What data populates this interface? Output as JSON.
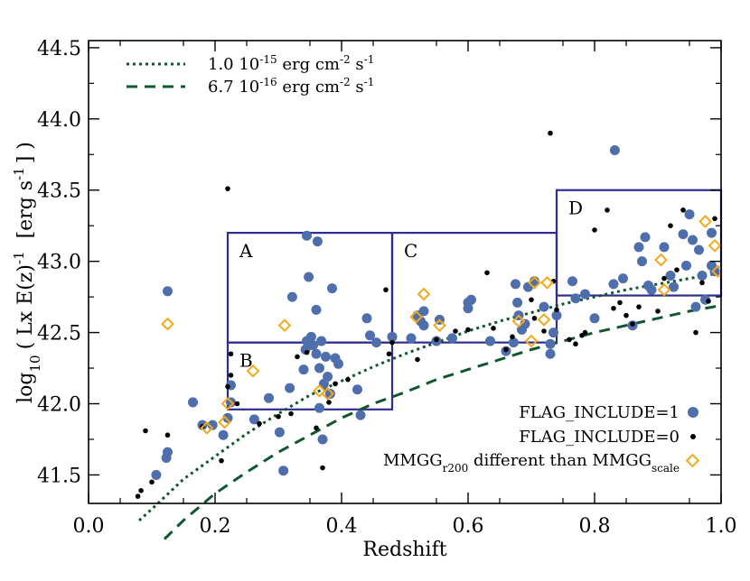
{
  "chart_data": {
    "type": "scatter",
    "xlabel": "Redshift",
    "ylabel_parts": {
      "prefix": "log",
      "sub": "10",
      "mid": "( Lx E(z)",
      "sup": "-1",
      "suffix": "[erg s",
      "unit_sup": "-1",
      "end": "] )"
    },
    "xlim": [
      0.0,
      1.0
    ],
    "ylim": [
      41.3,
      44.55
    ],
    "xticks": [
      0.0,
      0.2,
      0.4,
      0.6,
      0.8,
      1.0
    ],
    "xtick_labels": [
      "0.0",
      "0.2",
      "0.4",
      "0.6",
      "0.8",
      "1.0"
    ],
    "yticks": [
      41.5,
      42.0,
      42.5,
      43.0,
      43.5,
      44.0,
      44.5
    ],
    "ytick_labels": [
      "41.5",
      "42.0",
      "42.5",
      "43.0",
      "43.5",
      "44.0",
      "44.5"
    ],
    "colors": {
      "include1": "#4f6eac",
      "include0": "#000000",
      "mmgg": "#f2a91a",
      "curves": "#11572e",
      "regions": "#2e2e8f"
    },
    "legend_top": [
      {
        "style": "dotted",
        "label": "1.0 10",
        "sup1": "-15",
        "mid": " erg cm",
        "sup2": "-2",
        "end": " s",
        "sup3": "-1"
      },
      {
        "style": "dashed",
        "label": "6.7 10",
        "sup1": "-16",
        "mid": " erg cm",
        "sup2": "-2",
        "end": " s",
        "sup3": "-1"
      }
    ],
    "legend_bottom": [
      {
        "key": "include1",
        "label": "FLAG_INCLUDE=1"
      },
      {
        "key": "include0",
        "label": "FLAG_INCLUDE=0"
      },
      {
        "key": "mmgg",
        "label": "MMGG",
        "sub1": "r200",
        "mid": " different than MMGG",
        "sub2": "scale"
      }
    ],
    "regions": [
      {
        "label": "A",
        "x0": 0.22,
        "x1": 0.48,
        "y0": 42.43,
        "y1": 43.2
      },
      {
        "label": "B",
        "x0": 0.22,
        "x1": 0.48,
        "y0": 41.96,
        "y1": 42.43
      },
      {
        "label": "C",
        "x0": 0.48,
        "x1": 0.74,
        "y0": 42.43,
        "y1": 43.2
      },
      {
        "label": "D",
        "x0": 0.74,
        "x1": 1.0,
        "y0": 42.76,
        "y1": 43.5
      }
    ],
    "curves": [
      {
        "style": "dotted",
        "points": [
          [
            0.08,
            41.18
          ],
          [
            0.1,
            41.26
          ],
          [
            0.15,
            41.47
          ],
          [
            0.2,
            41.63
          ],
          [
            0.25,
            41.79
          ],
          [
            0.3,
            41.93
          ],
          [
            0.35,
            42.06
          ],
          [
            0.4,
            42.16
          ],
          [
            0.45,
            42.26
          ],
          [
            0.5,
            42.35
          ],
          [
            0.55,
            42.43
          ],
          [
            0.6,
            42.51
          ],
          [
            0.65,
            42.58
          ],
          [
            0.7,
            42.64
          ],
          [
            0.75,
            42.7
          ],
          [
            0.8,
            42.75
          ],
          [
            0.85,
            42.8
          ],
          [
            0.9,
            42.84
          ],
          [
            0.95,
            42.88
          ],
          [
            1.0,
            42.92
          ]
        ]
      },
      {
        "style": "dashed",
        "points": [
          [
            0.12,
            41.05
          ],
          [
            0.15,
            41.18
          ],
          [
            0.2,
            41.37
          ],
          [
            0.25,
            41.52
          ],
          [
            0.3,
            41.66
          ],
          [
            0.35,
            41.78
          ],
          [
            0.4,
            41.9
          ],
          [
            0.45,
            42.0
          ],
          [
            0.5,
            42.08
          ],
          [
            0.55,
            42.17
          ],
          [
            0.6,
            42.24
          ],
          [
            0.65,
            42.31
          ],
          [
            0.7,
            42.38
          ],
          [
            0.75,
            42.44
          ],
          [
            0.8,
            42.5
          ],
          [
            0.85,
            42.55
          ],
          [
            0.9,
            42.6
          ],
          [
            0.95,
            42.65
          ],
          [
            1.0,
            42.69
          ]
        ]
      }
    ],
    "series_include1": [
      [
        0.107,
        41.5
      ],
      [
        0.123,
        41.62
      ],
      [
        0.125,
        41.66
      ],
      [
        0.125,
        42.79
      ],
      [
        0.165,
        42.01
      ],
      [
        0.18,
        41.85
      ],
      [
        0.196,
        41.85
      ],
      [
        0.213,
        41.78
      ],
      [
        0.22,
        41.9
      ],
      [
        0.225,
        42.01
      ],
      [
        0.225,
        42.13
      ],
      [
        0.262,
        41.89
      ],
      [
        0.285,
        42.04
      ],
      [
        0.302,
        41.8
      ],
      [
        0.308,
        41.53
      ],
      [
        0.318,
        42.11
      ],
      [
        0.322,
        42.75
      ],
      [
        0.34,
        42.24
      ],
      [
        0.343,
        42.38
      ],
      [
        0.345,
        43.18
      ],
      [
        0.345,
        42.44
      ],
      [
        0.348,
        42.89
      ],
      [
        0.352,
        42.47
      ],
      [
        0.355,
        42.41
      ],
      [
        0.36,
        42.66
      ],
      [
        0.36,
        42.35
      ],
      [
        0.362,
        43.14
      ],
      [
        0.365,
        42.25
      ],
      [
        0.365,
        41.97
      ],
      [
        0.368,
        42.44
      ],
      [
        0.37,
        41.75
      ],
      [
        0.372,
        42.14
      ],
      [
        0.375,
        42.33
      ],
      [
        0.378,
        42.19
      ],
      [
        0.382,
        42.07
      ],
      [
        0.385,
        42.81
      ],
      [
        0.39,
        42.32
      ],
      [
        0.395,
        42.28
      ],
      [
        0.425,
        42.1
      ],
      [
        0.43,
        41.92
      ],
      [
        0.44,
        42.6
      ],
      [
        0.445,
        42.48
      ],
      [
        0.455,
        42.43
      ],
      [
        0.48,
        42.47
      ],
      [
        0.51,
        42.46
      ],
      [
        0.52,
        42.62
      ],
      [
        0.525,
        42.58
      ],
      [
        0.53,
        42.65
      ],
      [
        0.53,
        42.55
      ],
      [
        0.55,
        42.44
      ],
      [
        0.555,
        42.59
      ],
      [
        0.575,
        42.46
      ],
      [
        0.6,
        42.71
      ],
      [
        0.6,
        42.67
      ],
      [
        0.605,
        42.73
      ],
      [
        0.635,
        42.44
      ],
      [
        0.66,
        42.37
      ],
      [
        0.672,
        42.43
      ],
      [
        0.675,
        42.84
      ],
      [
        0.678,
        42.71
      ],
      [
        0.68,
        42.62
      ],
      [
        0.685,
        42.52
      ],
      [
        0.69,
        42.56
      ],
      [
        0.695,
        42.82
      ],
      [
        0.705,
        42.86
      ],
      [
        0.72,
        42.68
      ],
      [
        0.73,
        42.42
      ],
      [
        0.73,
        42.35
      ],
      [
        0.735,
        42.5
      ],
      [
        0.74,
        42.62
      ],
      [
        0.765,
        42.86
      ],
      [
        0.77,
        42.74
      ],
      [
        0.785,
        42.77
      ],
      [
        0.8,
        42.6
      ],
      [
        0.832,
        43.78
      ],
      [
        0.83,
        42.84
      ],
      [
        0.845,
        42.88
      ],
      [
        0.86,
        42.55
      ],
      [
        0.87,
        43.1
      ],
      [
        0.875,
        43.0
      ],
      [
        0.88,
        43.17
      ],
      [
        0.885,
        42.83
      ],
      [
        0.89,
        42.8
      ],
      [
        0.91,
        43.1
      ],
      [
        0.92,
        42.9
      ],
      [
        0.925,
        42.82
      ],
      [
        0.94,
        43.19
      ],
      [
        0.945,
        42.97
      ],
      [
        0.95,
        43.33
      ],
      [
        0.955,
        43.15
      ],
      [
        0.96,
        42.68
      ],
      [
        0.965,
        43.08
      ],
      [
        0.97,
        42.9
      ],
      [
        0.975,
        42.73
      ],
      [
        0.985,
        43.2
      ],
      [
        0.985,
        42.97
      ],
      [
        0.99,
        42.93
      ]
    ],
    "series_include0": [
      [
        0.078,
        41.35
      ],
      [
        0.083,
        41.39
      ],
      [
        0.09,
        41.81
      ],
      [
        0.1,
        41.45
      ],
      [
        0.125,
        41.78
      ],
      [
        0.18,
        41.84
      ],
      [
        0.21,
        41.6
      ],
      [
        0.22,
        43.51
      ],
      [
        0.22,
        42.12
      ],
      [
        0.225,
        42.35
      ],
      [
        0.225,
        42.2
      ],
      [
        0.235,
        42.0
      ],
      [
        0.27,
        41.86
      ],
      [
        0.3,
        41.91
      ],
      [
        0.32,
        41.93
      ],
      [
        0.33,
        42.33
      ],
      [
        0.345,
        42.36
      ],
      [
        0.36,
        41.83
      ],
      [
        0.37,
        41.55
      ],
      [
        0.38,
        42.01
      ],
      [
        0.39,
        42.14
      ],
      [
        0.41,
        42.17
      ],
      [
        0.47,
        42.8
      ],
      [
        0.475,
        42.35
      ],
      [
        0.48,
        42.43
      ],
      [
        0.52,
        42.31
      ],
      [
        0.55,
        42.45
      ],
      [
        0.58,
        42.51
      ],
      [
        0.6,
        42.52
      ],
      [
        0.63,
        42.92
      ],
      [
        0.64,
        42.53
      ],
      [
        0.66,
        42.38
      ],
      [
        0.67,
        42.47
      ],
      [
        0.7,
        42.73
      ],
      [
        0.705,
        42.6
      ],
      [
        0.72,
        42.51
      ],
      [
        0.73,
        43.9
      ],
      [
        0.735,
        42.86
      ],
      [
        0.74,
        42.66
      ],
      [
        0.76,
        42.45
      ],
      [
        0.77,
        42.42
      ],
      [
        0.78,
        42.48
      ],
      [
        0.785,
        42.5
      ],
      [
        0.8,
        43.22
      ],
      [
        0.82,
        43.36
      ],
      [
        0.83,
        42.67
      ],
      [
        0.84,
        42.71
      ],
      [
        0.85,
        42.62
      ],
      [
        0.86,
        42.56
      ],
      [
        0.87,
        42.68
      ],
      [
        0.9,
        42.65
      ],
      [
        0.91,
        42.88
      ],
      [
        0.92,
        43.25
      ],
      [
        0.93,
        42.94
      ],
      [
        0.94,
        43.36
      ],
      [
        0.96,
        42.5
      ],
      [
        0.97,
        42.85
      ],
      [
        0.98,
        42.72
      ],
      [
        0.99,
        43.3
      ]
    ],
    "series_mmgg": [
      [
        0.125,
        42.56
      ],
      [
        0.187,
        41.83
      ],
      [
        0.215,
        41.87
      ],
      [
        0.22,
        42.0
      ],
      [
        0.26,
        42.23
      ],
      [
        0.31,
        42.55
      ],
      [
        0.365,
        42.09
      ],
      [
        0.378,
        42.07
      ],
      [
        0.518,
        42.61
      ],
      [
        0.53,
        42.77
      ],
      [
        0.555,
        42.55
      ],
      [
        0.68,
        42.58
      ],
      [
        0.7,
        42.44
      ],
      [
        0.705,
        42.85
      ],
      [
        0.72,
        42.59
      ],
      [
        0.725,
        42.85
      ],
      [
        0.905,
        43.01
      ],
      [
        0.91,
        42.8
      ],
      [
        0.975,
        43.28
      ],
      [
        0.99,
        43.11
      ],
      [
        0.995,
        42.93
      ]
    ]
  }
}
